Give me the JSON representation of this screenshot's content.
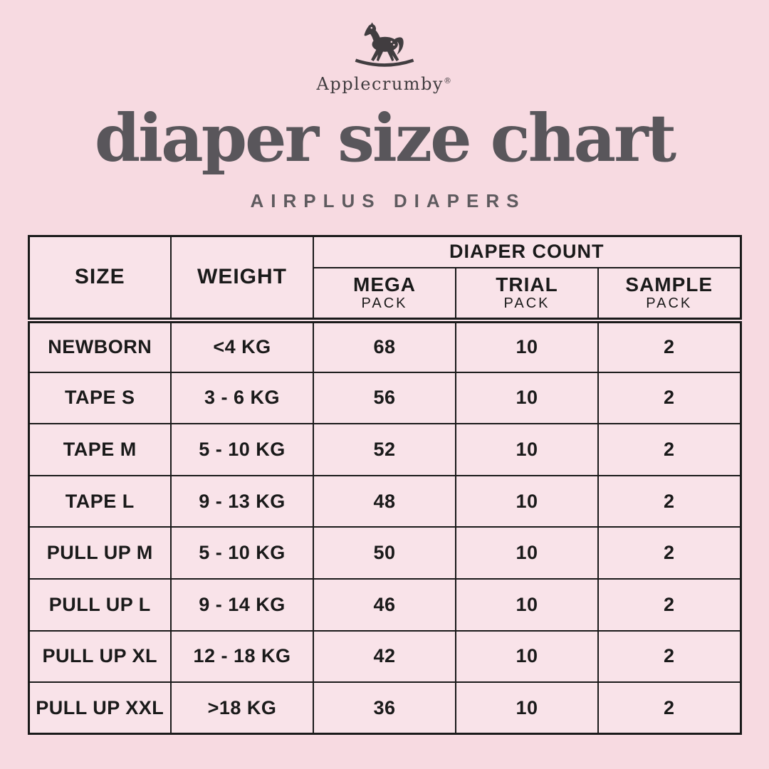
{
  "brand": {
    "name": "Applecrumby",
    "registered": "®",
    "logo_icon": "rocking-horse-icon"
  },
  "colors": {
    "page_bg": "#F7DAE1",
    "table_bg": "#F9E3E9",
    "border_color": "#1A1A1A",
    "text_color": "#1A1A1A",
    "title_color": "#59565B",
    "subtitle_color": "#5F5B5F",
    "logo_color": "#413D40"
  },
  "chart_data": {
    "type": "table",
    "title": "diaper size chart",
    "subtitle": "AIRPLUS DIAPERS",
    "columns": [
      "SIZE",
      "WEIGHT",
      "MEGA PACK",
      "TRIAL PACK",
      "SAMPLE PACK"
    ],
    "header": {
      "size": "SIZE",
      "weight": "WEIGHT",
      "group": "DIAPER COUNT",
      "group_spans": [
        "MEGA PACK",
        "TRIAL PACK",
        "SAMPLE PACK"
      ],
      "subcolumns": [
        {
          "label": "MEGA",
          "sublabel": "PACK"
        },
        {
          "label": "TRIAL",
          "sublabel": "PACK"
        },
        {
          "label": "SAMPLE",
          "sublabel": "PACK"
        }
      ]
    },
    "rows": [
      {
        "size": "NEWBORN",
        "weight": "<4 KG",
        "mega": 68,
        "trial": 10,
        "sample": 2
      },
      {
        "size": "TAPE S",
        "weight": "3 - 6 KG",
        "mega": 56,
        "trial": 10,
        "sample": 2
      },
      {
        "size": "TAPE M",
        "weight": "5 - 10 KG",
        "mega": 52,
        "trial": 10,
        "sample": 2
      },
      {
        "size": "TAPE L",
        "weight": "9 - 13 KG",
        "mega": 48,
        "trial": 10,
        "sample": 2
      },
      {
        "size": "PULL UP M",
        "weight": "5 - 10 KG",
        "mega": 50,
        "trial": 10,
        "sample": 2
      },
      {
        "size": "PULL UP L",
        "weight": "9 - 14 KG",
        "mega": 46,
        "trial": 10,
        "sample": 2
      },
      {
        "size": "PULL UP XL",
        "weight": "12 - 18 KG",
        "mega": 42,
        "trial": 10,
        "sample": 2
      },
      {
        "size": "PULL UP XXL",
        "weight": ">18 KG",
        "mega": 36,
        "trial": 10,
        "sample": 2
      }
    ]
  }
}
